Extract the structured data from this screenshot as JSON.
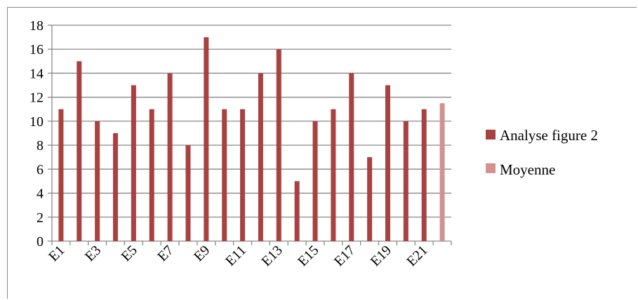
{
  "chart_data": {
    "type": "bar",
    "categories": [
      "E1",
      "E2",
      "E3",
      "E4",
      "E5",
      "E6",
      "E7",
      "E8",
      "E9",
      "E10",
      "E11",
      "E12",
      "E13",
      "E14",
      "E15",
      "E16",
      "E17",
      "E18",
      "E19",
      "E20",
      "E21",
      "E22"
    ],
    "visible_x_tick_labels": [
      "E1",
      "E3",
      "E5",
      "E7",
      "E9",
      "E11",
      "E13",
      "E15",
      "E17",
      "E19",
      "E21"
    ],
    "series": [
      {
        "name": "Analyse figure 2",
        "color": "#a94141",
        "values": [
          11,
          15,
          10,
          9,
          13,
          11,
          14,
          8,
          17,
          11,
          11,
          14,
          16,
          5,
          10,
          11,
          14,
          7,
          13,
          10,
          11,
          null
        ]
      },
      {
        "name": "Moyenne",
        "color": "#d49191",
        "values": [
          null,
          null,
          null,
          null,
          null,
          null,
          null,
          null,
          null,
          null,
          null,
          null,
          null,
          null,
          null,
          null,
          null,
          null,
          null,
          null,
          null,
          11.5
        ]
      }
    ],
    "ylim": [
      0,
      18
    ],
    "y_ticks": [
      0,
      2,
      4,
      6,
      8,
      10,
      12,
      14,
      16,
      18
    ],
    "grid": "horizontal",
    "legend_position": "right"
  }
}
